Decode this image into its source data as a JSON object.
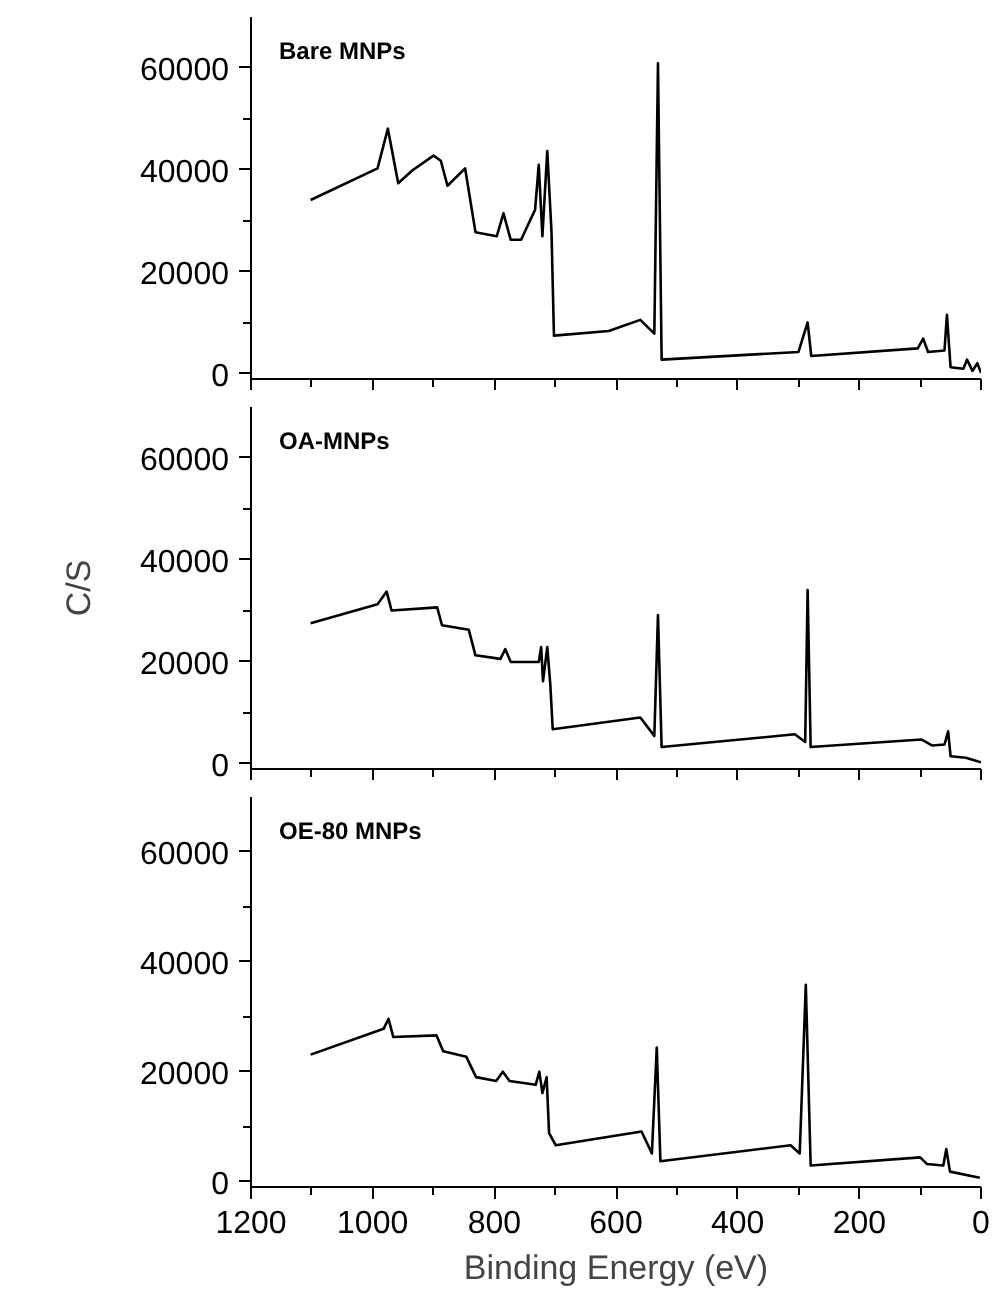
{
  "chart_data": [
    {
      "type": "line",
      "title": "Bare MNPs",
      "xlim": [
        1200,
        0
      ],
      "ylim": [
        -1000,
        70000
      ],
      "xticks": [
        1200,
        {
          "value": 1100,
          "label": null
        },
        1000,
        {
          "value": 900,
          "label": null
        },
        800,
        {
          "value": 700,
          "label": null
        },
        600,
        {
          "value": 500,
          "label": null
        },
        400,
        {
          "value": 300,
          "label": null
        },
        200,
        {
          "value": 100,
          "label": null
        },
        0
      ],
      "yticks": [
        0,
        {
          "value": 10000,
          "label": null
        },
        20000,
        {
          "value": 30000,
          "label": null
        },
        40000,
        {
          "value": 50000,
          "label": null
        },
        60000
      ],
      "tick_labels": "y",
      "grid": false,
      "series": [
        {
          "color": "#000000",
          "x": [
            1102,
            992,
            975,
            958,
            935,
            900,
            888,
            877,
            848,
            831,
            796,
            785,
            773,
            756,
            733,
            727,
            721,
            713,
            706,
            702,
            612,
            560,
            537,
            531,
            525,
            300,
            285,
            279,
            104,
            95,
            87,
            60,
            56,
            50,
            29,
            23,
            14,
            6,
            0
          ],
          "values": [
            34100,
            40300,
            48100,
            37400,
            39900,
            42800,
            41800,
            36900,
            40300,
            27800,
            27000,
            31500,
            26300,
            26300,
            32200,
            41000,
            27000,
            43700,
            27800,
            7500,
            8400,
            10600,
            7900,
            60900,
            2800,
            4300,
            10100,
            3500,
            5000,
            6900,
            4300,
            4600,
            11600,
            1300,
            1000,
            2800,
            600,
            2100,
            200
          ]
        }
      ]
    },
    {
      "type": "line",
      "title": "OA-MNPs",
      "ylabel": "C/S",
      "xlim": [
        1200,
        0
      ],
      "ylim": [
        -1000,
        70000
      ],
      "xticks": [
        1200,
        {
          "value": 1100,
          "label": null
        },
        1000,
        {
          "value": 900,
          "label": null
        },
        800,
        {
          "value": 700,
          "label": null
        },
        600,
        {
          "value": 500,
          "label": null
        },
        400,
        {
          "value": 300,
          "label": null
        },
        200,
        {
          "value": 100,
          "label": null
        },
        0
      ],
      "yticks": [
        0,
        {
          "value": 10000,
          "label": null
        },
        20000,
        {
          "value": 30000,
          "label": null
        },
        40000,
        {
          "value": 50000,
          "label": null
        },
        60000
      ],
      "tick_labels": "y",
      "grid": false,
      "series": [
        {
          "color": "#000000",
          "x": [
            1102,
            992,
            977,
            969,
            894,
            886,
            842,
            831,
            790,
            782,
            773,
            727,
            723,
            720,
            713,
            708,
            704,
            560,
            537,
            531,
            525,
            306,
            289,
            285,
            280,
            98,
            80,
            60,
            54,
            50,
            25,
            0
          ],
          "values": [
            27600,
            31300,
            33800,
            30100,
            30700,
            27200,
            26300,
            21300,
            20600,
            22500,
            20000,
            20000,
            22900,
            16200,
            22900,
            15600,
            6800,
            9100,
            5500,
            29200,
            3300,
            5800,
            4300,
            34100,
            3300,
            4800,
            3600,
            3800,
            6400,
            1500,
            1200,
            300
          ]
        }
      ]
    },
    {
      "type": "line",
      "title": "OE-80 MNPs",
      "xlabel": "Binding Energy (eV)",
      "xlim": [
        1200,
        0
      ],
      "ylim": [
        -1000,
        70000
      ],
      "xticks": [
        1200,
        {
          "value": 1100,
          "label": null
        },
        1000,
        {
          "value": 900,
          "label": null
        },
        800,
        {
          "value": 700,
          "label": null
        },
        600,
        {
          "value": 500,
          "label": null
        },
        400,
        {
          "value": 300,
          "label": null
        },
        200,
        {
          "value": 100,
          "label": null
        },
        0
      ],
      "yticks": [
        0,
        {
          "value": 10000,
          "label": null
        },
        20000,
        {
          "value": 30000,
          "label": null
        },
        40000,
        {
          "value": 50000,
          "label": null
        },
        60000
      ],
      "grid": false,
      "series": [
        {
          "color": "#000000",
          "x": [
            1102,
            982,
            974,
            966,
            895,
            884,
            846,
            830,
            797,
            786,
            775,
            732,
            726,
            721,
            714,
            710,
            699,
            558,
            541,
            533,
            527,
            313,
            298,
            288,
            280,
            100,
            89,
            62,
            57,
            51,
            2
          ],
          "values": [
            23100,
            27800,
            29600,
            26300,
            26600,
            23700,
            22700,
            19000,
            18300,
            20000,
            18300,
            17600,
            20000,
            16100,
            19000,
            8800,
            6600,
            9100,
            5100,
            24400,
            3700,
            6600,
            5100,
            35800,
            2900,
            4400,
            3200,
            2900,
            5900,
            1800,
            700
          ]
        }
      ]
    }
  ]
}
